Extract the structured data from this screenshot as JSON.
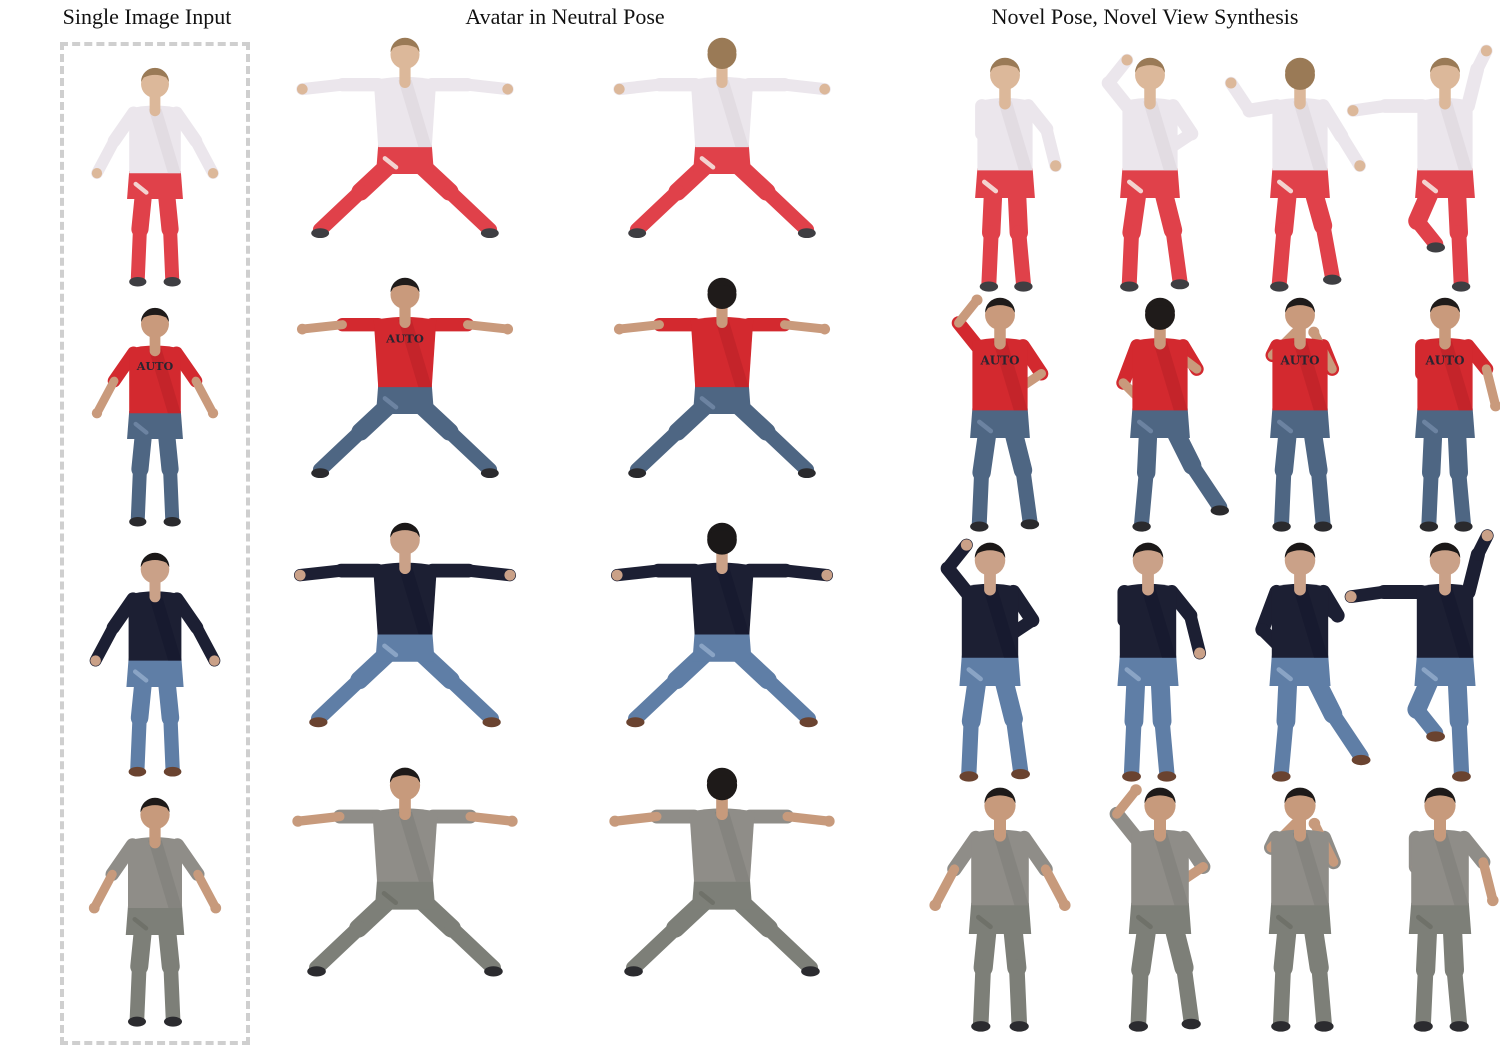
{
  "headers": {
    "input": "Single Image Input",
    "neutral": "Avatar in Neutral Pose",
    "novel": "Novel Pose, Novel View Synthesis"
  },
  "subjects": [
    {
      "name": "subject-1",
      "shirt": "#ebe6ec",
      "shirt_shade": "#d6d0d8",
      "pants": "#e0414a",
      "pants_accent": "#f3d3d0",
      "shoes": "#3e3e42",
      "skin": "#dcb89a",
      "hair": "#9a7a56",
      "logo": ""
    },
    {
      "name": "subject-2",
      "shirt": "#d3292f",
      "shirt_shade": "#b21f26",
      "pants": "#4e6683",
      "pants_accent": "#6c83a1",
      "shoes": "#2a2a2d",
      "skin": "#c99a7c",
      "hair": "#1f1b1a",
      "logo": "AUTO"
    },
    {
      "name": "subject-3",
      "shirt": "#1c1f33",
      "shirt_shade": "#12142a",
      "pants": "#5f7ea6",
      "pants_accent": "#8aa4c5",
      "shoes": "#6a4330",
      "skin": "#caa188",
      "hair": "#1b1818",
      "logo": ""
    },
    {
      "name": "subject-4",
      "shirt": "#8f8d88",
      "shirt_shade": "#7b7975",
      "pants": "#7d7f78",
      "pants_accent": "#6f7169",
      "shoes": "#2b2b2f",
      "skin": "#c79a7c",
      "hair": "#1e1a19",
      "logo": ""
    }
  ]
}
